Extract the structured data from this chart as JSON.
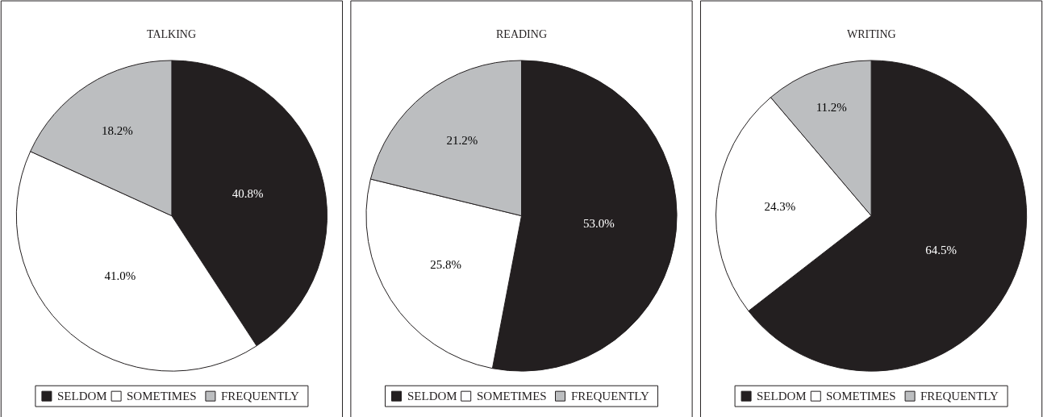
{
  "chart_data": [
    {
      "type": "pie",
      "title": "TALKING",
      "categories": [
        "SELDOM",
        "SOMETIMES",
        "FREQUENTLY"
      ],
      "values": [
        40.8,
        41.0,
        18.2
      ],
      "colors": [
        "#231f20",
        "#ffffff",
        "#bcbec0"
      ],
      "value_labels": [
        "40.8%",
        "41.0%",
        "18.2%"
      ],
      "legend": "bottom"
    },
    {
      "type": "pie",
      "title": "READING",
      "categories": [
        "SELDOM",
        "SOMETIMES",
        "FREQUENTLY"
      ],
      "values": [
        53.0,
        25.8,
        21.2
      ],
      "colors": [
        "#231f20",
        "#ffffff",
        "#bcbec0"
      ],
      "value_labels": [
        "53.0%",
        "25.8%",
        "21.2%"
      ],
      "legend": "bottom"
    },
    {
      "type": "pie",
      "title": "WRITING",
      "categories": [
        "SELDOM",
        "SOMETIMES",
        "FREQUENTLY"
      ],
      "values": [
        64.5,
        24.3,
        11.2
      ],
      "colors": [
        "#231f20",
        "#ffffff",
        "#bcbec0"
      ],
      "value_labels": [
        "64.5%",
        "24.3%",
        "11.2%"
      ],
      "legend": "bottom"
    }
  ]
}
